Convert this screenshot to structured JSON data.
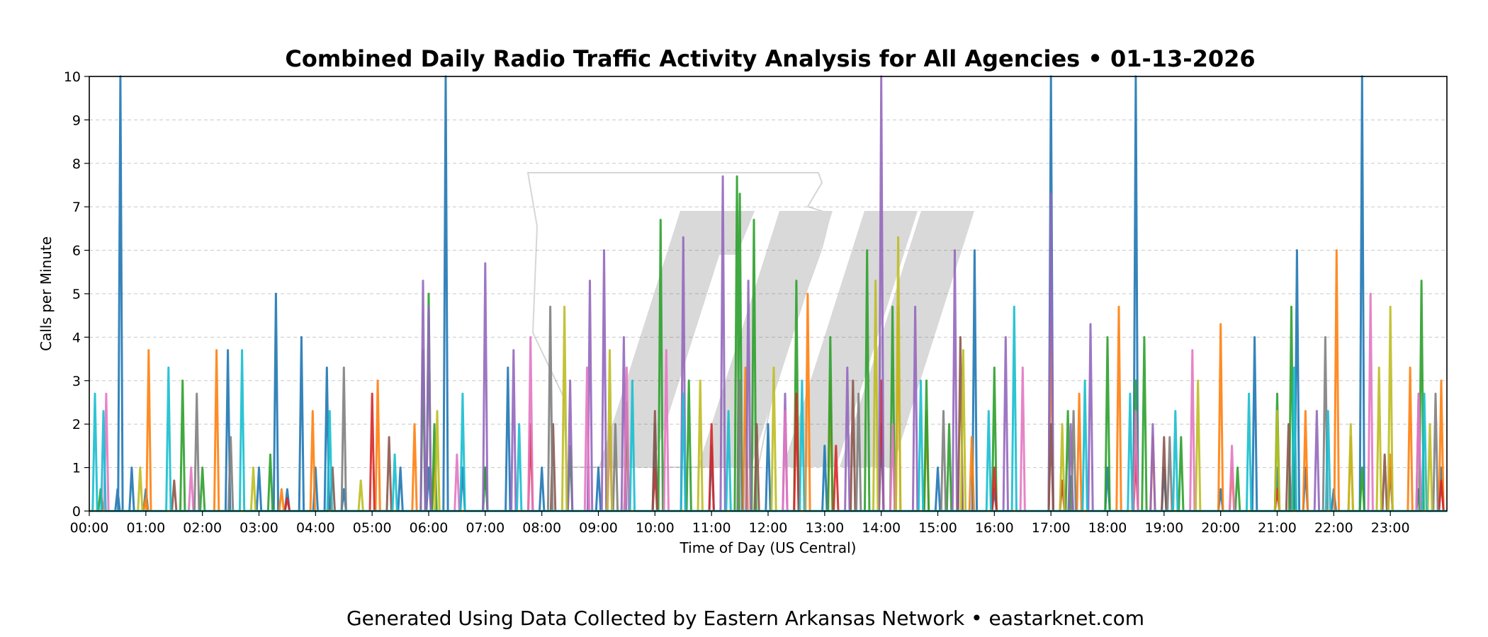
{
  "chart_data": {
    "type": "line",
    "title": "Combined Daily Radio Traffic Activity Analysis for All Agencies • 01-13-2026",
    "xlabel": "Time of Day (US Central)",
    "ylabel": "Calls per Minute",
    "footer": "Generated Using Data Collected by Eastern Arkansas Network • eastarknet.com",
    "x_unit": "hours since 00:00",
    "xlim": [
      0,
      24
    ],
    "ylim": [
      0,
      10
    ],
    "y_ticks": [
      "0",
      "1",
      "2",
      "3",
      "4",
      "5",
      "6",
      "7",
      "8",
      "9",
      "10"
    ],
    "x_ticks": [
      "00:00",
      "01:00",
      "02:00",
      "03:00",
      "04:00",
      "05:00",
      "06:00",
      "07:00",
      "08:00",
      "09:00",
      "10:00",
      "11:00",
      "12:00",
      "13:00",
      "14:00",
      "15:00",
      "16:00",
      "17:00",
      "18:00",
      "19:00",
      "20:00",
      "21:00",
      "22:00",
      "23:00"
    ],
    "grid": "horizontal dashed",
    "legend": "none",
    "series": [
      {
        "color": "#1f77b4",
        "x": [
          0.5,
          0.55,
          0.75,
          1.0,
          2.45,
          3.0,
          3.3,
          3.5,
          3.75,
          4.0,
          4.2,
          4.5,
          5.5,
          6.0,
          6.3,
          6.6,
          7.0,
          7.4,
          8.0,
          9.0,
          10.0,
          11.0,
          12.0,
          13.0,
          14.0,
          15.0,
          15.65,
          16.0,
          17.0,
          17.35,
          18.0,
          18.5,
          19.0,
          20.0,
          20.6,
          21.0,
          21.35,
          21.5,
          22.0,
          22.5,
          23.0,
          23.5,
          23.9
        ],
        "y": [
          0.5,
          10,
          1,
          0.5,
          3.7,
          1,
          5,
          0.5,
          4,
          1,
          3.3,
          0.5,
          1,
          1,
          10,
          1,
          1,
          3.3,
          1,
          1,
          2,
          1.5,
          2,
          1.5,
          2,
          1,
          6,
          0.5,
          10,
          0.8,
          1,
          10,
          1,
          0.5,
          4,
          1,
          6,
          1,
          0.5,
          10,
          1,
          0.5,
          1
        ]
      },
      {
        "color": "#ff7f0e",
        "x": [
          1.0,
          1.05,
          2.25,
          3.4,
          3.95,
          5.1,
          5.75,
          6.1,
          9.5,
          11.6,
          12.7,
          13.1,
          14.3,
          14.8,
          15.6,
          17.0,
          17.5,
          18.2,
          18.8,
          20.0,
          20.2,
          21.5,
          22.05,
          22.3,
          23.0,
          23.35,
          23.9
        ],
        "y": [
          0.3,
          3.7,
          3.7,
          0.5,
          2.3,
          3,
          2,
          1,
          2,
          3.3,
          5,
          3,
          4.7,
          2.3,
          1.7,
          4.3,
          2.7,
          4.7,
          1.7,
          4.3,
          1,
          2.3,
          6,
          1.7,
          1.3,
          3.3,
          3
        ]
      },
      {
        "color": "#2ca02c",
        "x": [
          0.2,
          1.65,
          2.0,
          3.2,
          5.9,
          6.0,
          6.1,
          7.0,
          8.5,
          9.5,
          10.1,
          10.6,
          11.45,
          11.5,
          11.75,
          12.5,
          13.1,
          13.75,
          14.2,
          14.8,
          15.2,
          16.0,
          17.3,
          18.0,
          18.5,
          18.65,
          19.3,
          20.3,
          21.0,
          21.25,
          22.5,
          23.55
        ],
        "y": [
          0.5,
          3,
          1,
          1.3,
          3.7,
          5,
          2,
          1,
          1.5,
          2.5,
          6.7,
          3,
          7.7,
          7.3,
          6.7,
          5.3,
          4,
          6,
          4.7,
          3,
          2,
          3.3,
          2.3,
          4,
          3,
          4,
          1.7,
          1,
          2.7,
          4.7,
          1,
          5.3
        ]
      },
      {
        "color": "#d62728",
        "x": [
          3.5,
          5.0,
          7.8,
          10.0,
          11.0,
          12.5,
          13.2,
          14.0,
          16.0,
          17.2,
          18.5,
          21.0,
          23.9
        ],
        "y": [
          0.3,
          2.7,
          2,
          1,
          2,
          2.7,
          1.5,
          3,
          1,
          0.7,
          1.3,
          0.5,
          0.7
        ]
      },
      {
        "color": "#9467bd",
        "x": [
          5.9,
          6.0,
          7.0,
          7.5,
          8.5,
          8.85,
          9.1,
          9.45,
          10.5,
          11.2,
          11.65,
          12.3,
          13.4,
          14.0,
          14.6,
          15.3,
          16.2,
          17.0,
          17.35,
          17.7,
          18.8,
          21.7,
          23.5
        ],
        "y": [
          5.3,
          4.7,
          5.7,
          3.7,
          3,
          5.3,
          6,
          4,
          6.3,
          7.7,
          5.3,
          2.7,
          3.3,
          10,
          4.7,
          6,
          4,
          7.3,
          2,
          4.3,
          2,
          2.3,
          2.7
        ]
      },
      {
        "color": "#8c564b",
        "x": [
          1.5,
          4.3,
          5.3,
          8.2,
          10.0,
          11.8,
          13.5,
          15.4,
          17.0,
          19.0,
          21.2,
          22.9
        ],
        "y": [
          0.7,
          1,
          1.7,
          2,
          2.3,
          2,
          3,
          4,
          2,
          1.7,
          2,
          1.3
        ]
      },
      {
        "color": "#e377c2",
        "x": [
          0.3,
          1.8,
          6.5,
          7.8,
          8.8,
          9.2,
          9.5,
          10.2,
          12.3,
          14.2,
          16.5,
          18.5,
          19.5,
          20.2,
          22.65,
          23.5
        ],
        "y": [
          2.7,
          1,
          1.3,
          4,
          3.3,
          2,
          3.3,
          3.7,
          2.3,
          2,
          3.3,
          2.3,
          3.7,
          1.5,
          5,
          2.7
        ]
      },
      {
        "color": "#7f7f7f",
        "x": [
          1.9,
          2.5,
          4.5,
          8.15,
          9.3,
          11.5,
          13.6,
          15.1,
          17.4,
          19.1,
          21.85,
          23.8
        ],
        "y": [
          2.7,
          1.7,
          3.3,
          4.7,
          2,
          3,
          2.7,
          2.3,
          2.3,
          1.7,
          4,
          2.7
        ]
      },
      {
        "color": "#bcbd22",
        "x": [
          0.9,
          2.9,
          4.8,
          6.15,
          8.4,
          9.2,
          10.8,
          12.1,
          13.9,
          14.3,
          15.45,
          17.2,
          19.6,
          21.0,
          22.3,
          22.8,
          23.0,
          23.7
        ],
        "y": [
          1,
          1,
          0.7,
          2.3,
          4.7,
          3.7,
          3,
          3.3,
          5.3,
          6.3,
          3.7,
          2,
          3,
          2.3,
          2,
          3.3,
          4.7,
          2
        ]
      },
      {
        "color": "#17becf",
        "x": [
          0.1,
          0.25,
          1.4,
          2.7,
          4.25,
          5.4,
          6.6,
          7.6,
          9.6,
          10.5,
          11.3,
          12.6,
          14.7,
          15.9,
          16.35,
          17.6,
          18.4,
          19.2,
          20.5,
          21.3,
          21.9,
          23.6
        ],
        "y": [
          2.7,
          2.3,
          3.3,
          3.7,
          2.3,
          1.3,
          2.7,
          2,
          3,
          2.7,
          2.3,
          3,
          3,
          2.3,
          4.7,
          3,
          2.7,
          2.3,
          2.7,
          3.3,
          2.3,
          2.7
        ]
      }
    ]
  }
}
